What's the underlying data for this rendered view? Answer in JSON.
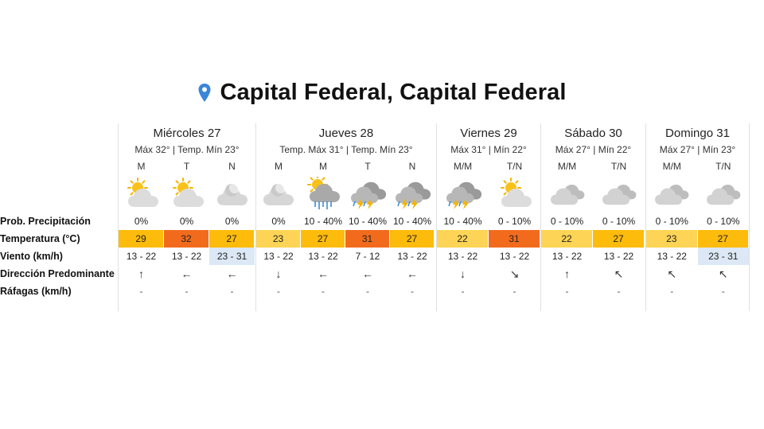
{
  "location": {
    "title": "Capital Federal, Capital Federal"
  },
  "row_labels": {
    "precip": "Prob. Precipitación",
    "temp": "Temperatura (°C)",
    "wind": "Viento (km/h)",
    "direction": "Dirección Predominante",
    "gusts": "Ráfagas (km/h)"
  },
  "colors": {
    "pin": "#3a86d8",
    "temp_22": "#fdd455",
    "temp_23": "#fdd455",
    "temp_27": "#fdbb0b",
    "temp_29": "#fdbb0b",
    "temp_31": "#f26b1d",
    "temp_32": "#f26b1d",
    "wind_highlight": "#dce8f5"
  },
  "days": [
    {
      "name": "Miércoles 27",
      "minmax": "Máx 32° | Temp. Mín 23°",
      "periods": [
        {
          "label": "M",
          "icon": "partly-cloudy-sun-icon",
          "precip": "0%",
          "temp": "29",
          "temp_color": "#fdbb0b",
          "wind": "13 - 22",
          "wind_hl": false,
          "dir": "↑",
          "gust": "-"
        },
        {
          "label": "T",
          "icon": "partly-cloudy-sun-icon",
          "precip": "0%",
          "temp": "32",
          "temp_color": "#f26b1d",
          "wind": "13 - 22",
          "wind_hl": false,
          "dir": "←",
          "gust": "-"
        },
        {
          "label": "N",
          "icon": "partly-cloudy-moon-icon",
          "precip": "0%",
          "temp": "27",
          "temp_color": "#fdbb0b",
          "wind": "23 - 31",
          "wind_hl": true,
          "dir": "←",
          "gust": "-"
        }
      ]
    },
    {
      "name": "Jueves 28",
      "minmax": "Temp. Máx 31° | Temp. Mín 23°",
      "periods": [
        {
          "label": "M",
          "icon": "partly-cloudy-moon-icon",
          "precip": "0%",
          "temp": "23",
          "temp_color": "#fdd455",
          "wind": "13 - 22",
          "wind_hl": false,
          "dir": "↓",
          "gust": "-"
        },
        {
          "label": "M",
          "icon": "rain-sun-icon",
          "precip": "10 - 40%",
          "temp": "27",
          "temp_color": "#fdbb0b",
          "wind": "13 - 22",
          "wind_hl": false,
          "dir": "←",
          "gust": "-"
        },
        {
          "label": "T",
          "icon": "thunderstorm-icon",
          "precip": "10 - 40%",
          "temp": "31",
          "temp_color": "#f26b1d",
          "wind": "7 - 12",
          "wind_hl": false,
          "dir": "←",
          "gust": "-"
        },
        {
          "label": "N",
          "icon": "thunderstorm-icon",
          "precip": "10 - 40%",
          "temp": "27",
          "temp_color": "#fdbb0b",
          "wind": "13 - 22",
          "wind_hl": false,
          "dir": "←",
          "gust": "-"
        }
      ]
    },
    {
      "name": "Viernes 29",
      "minmax": "Máx 31° | Mín 22°",
      "periods": [
        {
          "label": "M/M",
          "icon": "thunderstorm-icon",
          "precip": "10 - 40%",
          "temp": "22",
          "temp_color": "#fdd455",
          "wind": "13 - 22",
          "wind_hl": false,
          "dir": "↓",
          "gust": "-"
        },
        {
          "label": "T/N",
          "icon": "partly-cloudy-sun-icon",
          "precip": "0 - 10%",
          "temp": "31",
          "temp_color": "#f26b1d",
          "wind": "13 - 22",
          "wind_hl": false,
          "dir": "↘",
          "gust": "-"
        }
      ]
    },
    {
      "name": "Sábado 30",
      "minmax": "Máx 27° | Mín 22°",
      "periods": [
        {
          "label": "M/M",
          "icon": "cloudy-icon",
          "precip": "0 - 10%",
          "temp": "22",
          "temp_color": "#fdd455",
          "wind": "13 - 22",
          "wind_hl": false,
          "dir": "↑",
          "gust": "-"
        },
        {
          "label": "T/N",
          "icon": "cloudy-icon",
          "precip": "0 - 10%",
          "temp": "27",
          "temp_color": "#fdbb0b",
          "wind": "13 - 22",
          "wind_hl": false,
          "dir": "↖",
          "gust": "-"
        }
      ]
    },
    {
      "name": "Domingo 31",
      "minmax": "Máx 27° | Mín 23°",
      "periods": [
        {
          "label": "M/M",
          "icon": "cloudy-icon",
          "precip": "0 - 10%",
          "temp": "23",
          "temp_color": "#fdd455",
          "wind": "13 - 22",
          "wind_hl": false,
          "dir": "↖",
          "gust": "-"
        },
        {
          "label": "T/N",
          "icon": "cloudy-icon",
          "precip": "0 - 10%",
          "temp": "27",
          "temp_color": "#fdbb0b",
          "wind": "23 - 31",
          "wind_hl": true,
          "dir": "↖",
          "gust": "-"
        }
      ]
    }
  ]
}
